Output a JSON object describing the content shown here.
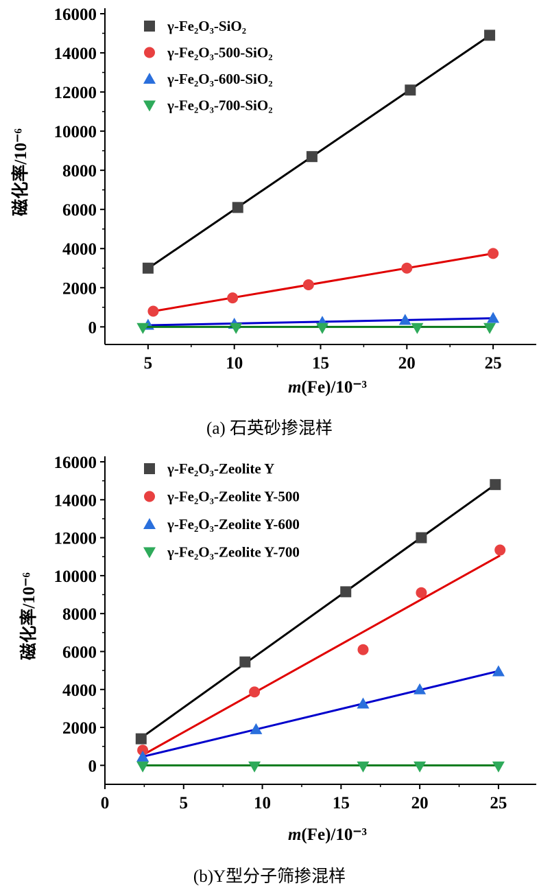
{
  "chart_data": [
    {
      "type": "scatter",
      "title": "",
      "caption": "(a) 石英砂掺混样",
      "xlabel_italic": "m",
      "xlabel_rest": "(Fe)/10⁻³",
      "ylabel": "磁化率/10⁻⁶",
      "xlim": [
        2.5,
        27.5
      ],
      "ylim": [
        -900,
        16000
      ],
      "xticks": [
        5,
        10,
        15,
        20,
        25
      ],
      "yticks": [
        0,
        2000,
        4000,
        6000,
        8000,
        10000,
        12000,
        14000,
        16000
      ],
      "legend_position": "top-left",
      "series": [
        {
          "name": "γ-Fe₂O₃-SiO₂",
          "marker": "square",
          "color": "#444444",
          "line_color": "#000000",
          "x": [
            5,
            10.2,
            14.5,
            20.2,
            24.8
          ],
          "y": [
            3000,
            6100,
            8700,
            12100,
            14900
          ]
        },
        {
          "name": "γ-Fe₂O₃-500-SiO₂",
          "marker": "circle",
          "color": "#e84040",
          "line_color": "#e00000",
          "x": [
            5.3,
            9.9,
            14.3,
            20,
            25
          ],
          "y": [
            800,
            1480,
            2150,
            3000,
            3750
          ]
        },
        {
          "name": "γ-Fe₂O₃-600-SiO₂",
          "marker": "triangle-up",
          "color": "#2a6fdc",
          "line_color": "#0000cc",
          "x": [
            5,
            10,
            15.1,
            19.9,
            25
          ],
          "y": [
            100,
            150,
            250,
            350,
            450
          ]
        },
        {
          "name": "γ-Fe₂O₃-700-SiO₂",
          "marker": "triangle-down",
          "color": "#2eaa5a",
          "line_color": "#0a7a1a",
          "x": [
            4.7,
            10.1,
            15.1,
            20.6,
            24.8
          ],
          "y": [
            -50,
            -50,
            -50,
            -50,
            -50
          ]
        }
      ]
    },
    {
      "type": "scatter",
      "title": "",
      "caption": "(b)Y型分子筛掺混样",
      "xlabel_italic": "m",
      "xlabel_rest": "(Fe)/10⁻³",
      "ylabel": "磁化率/10⁻⁶",
      "xlim": [
        0,
        27.4
      ],
      "ylim": [
        -1000,
        16000
      ],
      "xticks": [
        0,
        5,
        10,
        15,
        20,
        25
      ],
      "yticks": [
        0,
        2000,
        4000,
        6000,
        8000,
        10000,
        12000,
        14000,
        16000
      ],
      "legend_position": "top-left",
      "series": [
        {
          "name": "γ-Fe₂O₃-Zeolite Y",
          "marker": "square",
          "color": "#444444",
          "line_color": "#000000",
          "x": [
            2.3,
            8.9,
            15.3,
            20.1,
            24.8
          ],
          "y": [
            1400,
            5450,
            9150,
            12000,
            14800
          ]
        },
        {
          "name": "γ-Fe₂O₃-Zeolite Y-500",
          "marker": "circle",
          "color": "#e84040",
          "line_color": "#e00000",
          "x": [
            2.4,
            9.5,
            16.4,
            20.1,
            25.1
          ],
          "y": [
            800,
            3870,
            6100,
            9100,
            11350
          ]
        },
        {
          "name": "γ-Fe₂O₃-Zeolite Y-600",
          "marker": "triangle-up",
          "color": "#2a6fdc",
          "line_color": "#0000cc",
          "x": [
            2.4,
            9.6,
            16.4,
            20,
            25
          ],
          "y": [
            450,
            1900,
            3250,
            4000,
            4950
          ]
        },
        {
          "name": "γ-Fe₂O₃-Zeolite Y-700",
          "marker": "triangle-down",
          "color": "#2eaa5a",
          "line_color": "#0a7a1a",
          "x": [
            2.4,
            9.5,
            16.4,
            20,
            25
          ],
          "y": [
            -50,
            -50,
            -50,
            -50,
            -50
          ]
        }
      ]
    }
  ]
}
